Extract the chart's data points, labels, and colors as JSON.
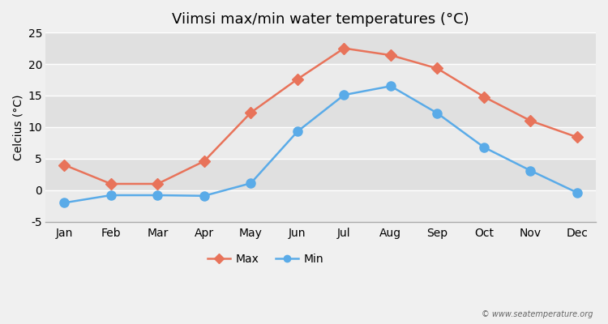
{
  "title": "Viimsi max/min water temperatures (°C)",
  "ylabel": "Celcius (°C)",
  "months": [
    "Jan",
    "Feb",
    "Mar",
    "Apr",
    "May",
    "Jun",
    "Jul",
    "Aug",
    "Sep",
    "Oct",
    "Nov",
    "Dec"
  ],
  "max_values": [
    4.0,
    1.0,
    1.0,
    4.6,
    12.3,
    17.6,
    22.5,
    21.4,
    19.3,
    14.8,
    11.0,
    8.4
  ],
  "min_values": [
    -2.0,
    -0.8,
    -0.8,
    -0.9,
    1.1,
    9.3,
    15.1,
    16.5,
    12.2,
    6.8,
    3.1,
    -0.4
  ],
  "max_color": "#e8735a",
  "min_color": "#5aabe8",
  "max_marker": "D",
  "min_marker": "o",
  "max_marker_size": 7,
  "min_marker_size": 8,
  "line_width": 1.8,
  "ylim": [
    -5,
    25
  ],
  "yticks": [
    -5,
    0,
    5,
    10,
    15,
    20,
    25
  ],
  "bg_color": "#f0f0f0",
  "plot_bg_light": "#ebebeb",
  "plot_bg_dark": "#e0e0e0",
  "grid_color": "#ffffff",
  "watermark": "© www.seatemperature.org",
  "legend_labels": [
    "Max",
    "Min"
  ],
  "title_fontsize": 13,
  "label_fontsize": 10,
  "tick_fontsize": 10
}
